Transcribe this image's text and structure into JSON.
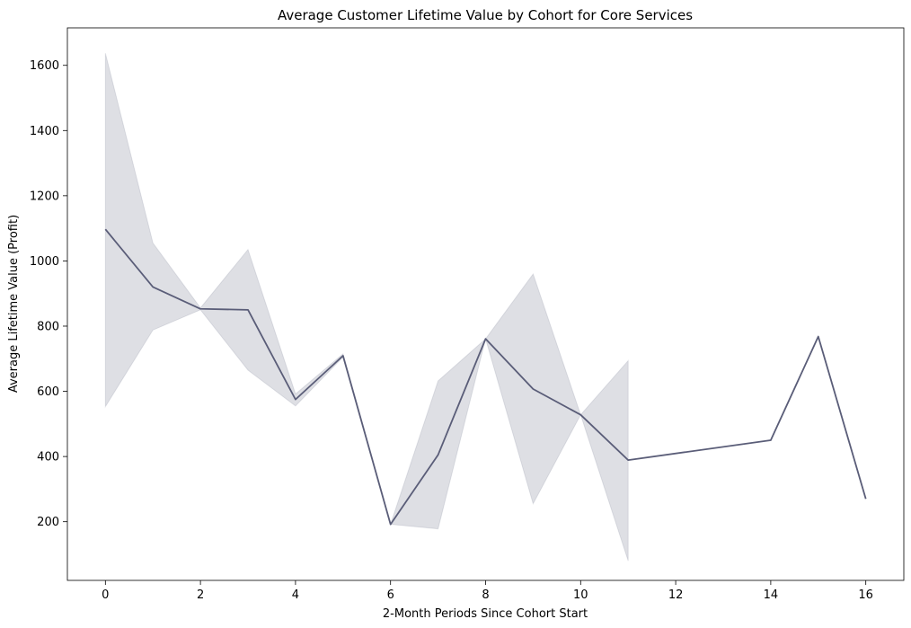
{
  "chart_data": {
    "type": "line",
    "title": "Average Customer Lifetime Value by Cohort for Core Services",
    "xlabel": "2-Month Periods Since Cohort Start",
    "ylabel": "Average Lifetime Value (Profit)",
    "xlim": [
      -0.8,
      16.8
    ],
    "ylim": [
      20,
      1715
    ],
    "x_ticks": [
      0,
      2,
      4,
      6,
      8,
      10,
      12,
      14,
      16
    ],
    "y_ticks": [
      200,
      400,
      600,
      800,
      1000,
      1200,
      1400,
      1600
    ],
    "grid": false,
    "legend": "none",
    "series": [
      {
        "color": "#5a5d78",
        "band_color": "#5a5d78",
        "points": [
          {
            "x": 0,
            "y": 1097,
            "lo": 553,
            "hi": 1637
          },
          {
            "x": 1,
            "y": 920,
            "lo": 788,
            "hi": 1055
          },
          {
            "x": 2,
            "y": 853,
            "lo": 850,
            "hi": 856
          },
          {
            "x": 3,
            "y": 850,
            "lo": 665,
            "hi": 1035
          },
          {
            "x": 4,
            "y": 575,
            "lo": 555,
            "hi": 592
          },
          {
            "x": 5,
            "y": 709,
            "lo": 705,
            "hi": 715
          },
          {
            "x": 6,
            "y": 192,
            "lo": 192,
            "hi": 192
          },
          {
            "x": 7,
            "y": 405,
            "lo": 178,
            "hi": 632
          },
          {
            "x": 8,
            "y": 761,
            "lo": 761,
            "hi": 761
          },
          {
            "x": 9,
            "y": 607,
            "lo": 255,
            "hi": 960
          },
          {
            "x": 10,
            "y": 528,
            "lo": 528,
            "hi": 528
          },
          {
            "x": 11,
            "y": 389,
            "lo": 80,
            "hi": 694
          },
          {
            "x": 14,
            "y": 450,
            "lo": 450,
            "hi": 450
          },
          {
            "x": 15,
            "y": 768,
            "lo": 768,
            "hi": 768
          },
          {
            "x": 16,
            "y": 270,
            "lo": 270,
            "hi": 270
          }
        ]
      }
    ]
  }
}
